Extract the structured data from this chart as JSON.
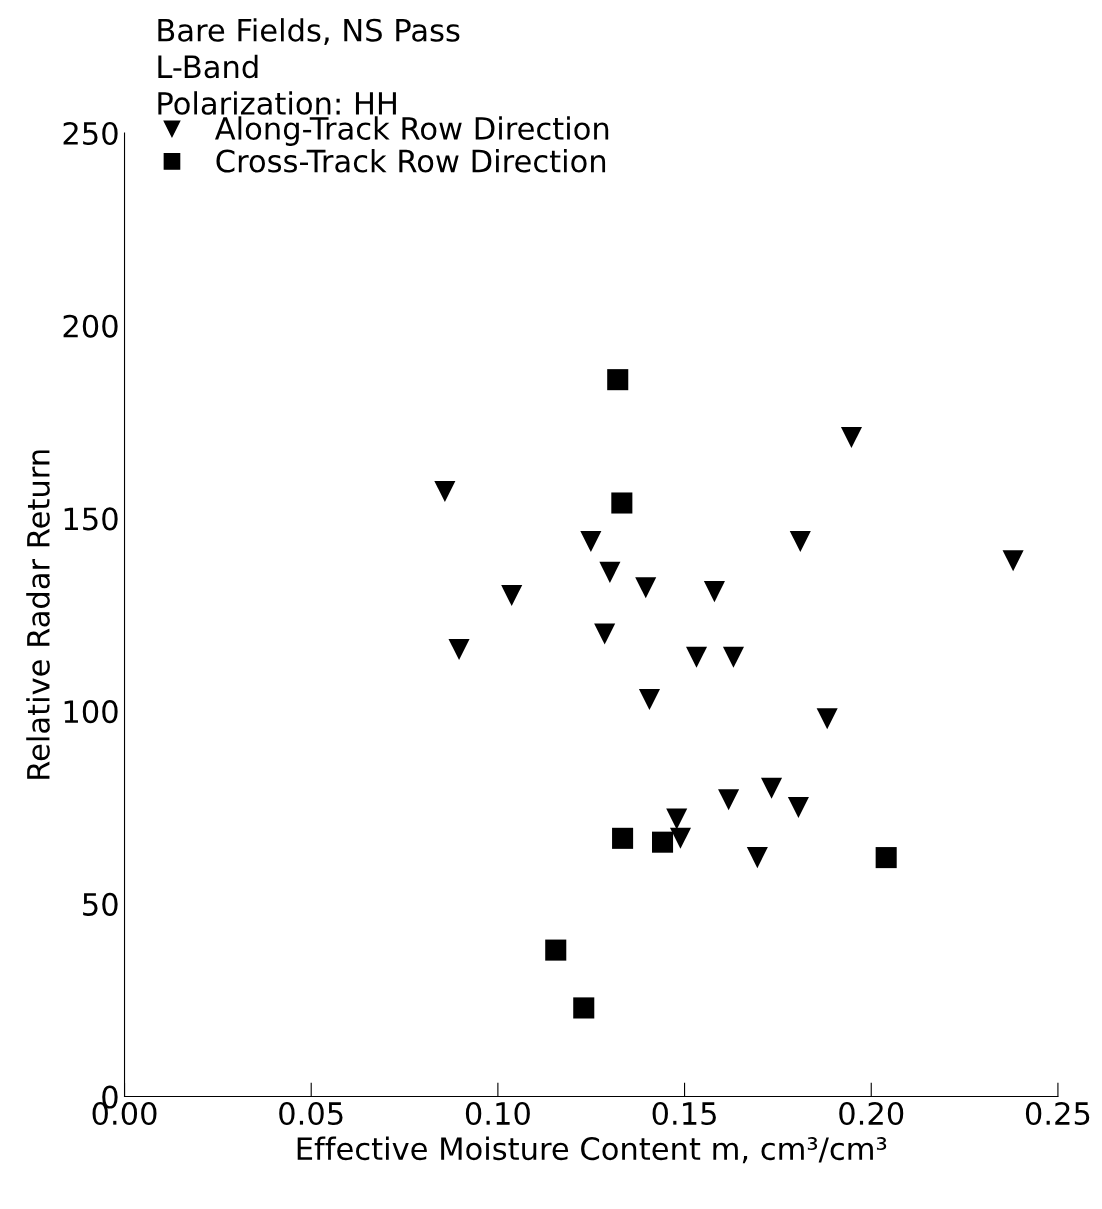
{
  "chart_data": {
    "type": "scatter",
    "title": "Bare Fields, NS Pass\nL-Band\nPolarization: HH",
    "xlabel": "Effective Moisture Content m, cm³/cm³",
    "ylabel": "Relative Radar Return",
    "series": [
      {
        "name": "Along-Track Row Direction",
        "color": "#000000",
        "marker": "triangle_down",
        "x": [
          0.0858,
          0.1249,
          0.13,
          0.1396,
          0.158,
          0.181,
          0.1947,
          0.1037,
          0.1286,
          0.0896,
          0.1532,
          0.1631,
          0.1406,
          0.1882,
          0.238,
          0.1733,
          0.1618,
          0.1805,
          0.1479,
          0.1489,
          0.1695
        ],
        "values": [
          157,
          144,
          136,
          132,
          131,
          144,
          171,
          130,
          120,
          116,
          114,
          114,
          103,
          98,
          139,
          80,
          77,
          75,
          72,
          67,
          62
        ]
      },
      {
        "name": "Cross-Track Row Direction",
        "color": "#000000",
        "marker": "square",
        "x": [
          0.1321,
          0.1332,
          0.1334,
          0.1441,
          0.204,
          0.1155,
          0.123
        ],
        "values": [
          186,
          154,
          67,
          66,
          62,
          38,
          23
        ]
      }
    ],
    "xlim": [
      0,
      0.25
    ],
    "xticks": [
      {
        "value": 0,
        "label": "0.00"
      },
      {
        "value": 0.05,
        "label": "0.05"
      },
      {
        "value": 0.1,
        "label": "0.10"
      },
      {
        "value": 0.15,
        "label": "0.15"
      },
      {
        "value": 0.2,
        "label": "0.20"
      },
      {
        "value": 0.25,
        "label": "0.25"
      }
    ],
    "ylim": [
      0,
      250
    ],
    "yticks": [
      0,
      50,
      100,
      150,
      200,
      250
    ],
    "grid": false,
    "legend": "top left"
  }
}
